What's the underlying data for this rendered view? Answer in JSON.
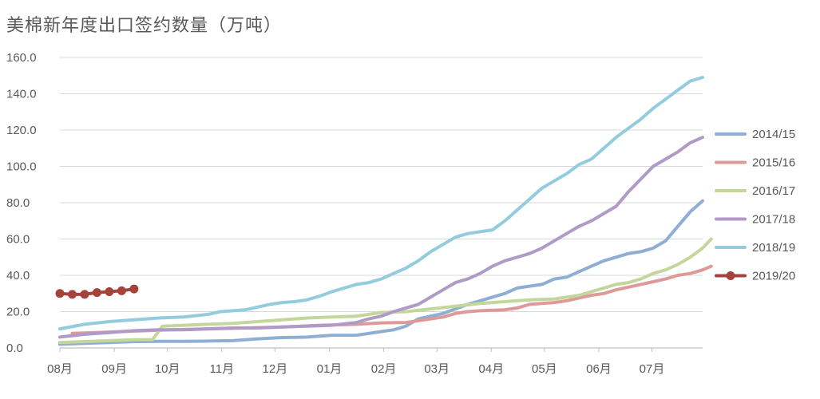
{
  "chart_data": {
    "type": "line",
    "title": "美棉新年度出口签约数量（万吨）",
    "xlabel": "",
    "ylabel": "",
    "ylim": [
      0,
      160
    ],
    "yticks": [
      "0.0",
      "20.0",
      "40.0",
      "60.0",
      "80.0",
      "100.0",
      "120.0",
      "140.0",
      "160.0"
    ],
    "x_range": [
      0,
      52
    ],
    "x_ticks": [
      {
        "label": "08月",
        "x": 0
      },
      {
        "label": "09月",
        "x": 4.4
      },
      {
        "label": "10月",
        "x": 8.7
      },
      {
        "label": "11月",
        "x": 13.1
      },
      {
        "label": "12月",
        "x": 17.4
      },
      {
        "label": "01月",
        "x": 21.8
      },
      {
        "label": "02月",
        "x": 26.2
      },
      {
        "label": "03月",
        "x": 30.5
      },
      {
        "label": "04月",
        "x": 34.9
      },
      {
        "label": "05月",
        "x": 39.2
      },
      {
        "label": "06月",
        "x": 43.6
      },
      {
        "label": "07月",
        "x": 47.9
      }
    ],
    "grid": true,
    "legend_position": "right",
    "series": [
      {
        "name": "2014/15",
        "color": "#8eaed3",
        "marker": false,
        "points": [
          [
            0,
            2
          ],
          [
            2,
            2.5
          ],
          [
            4,
            3
          ],
          [
            6,
            3.5
          ],
          [
            8,
            3.6
          ],
          [
            10,
            3.6
          ],
          [
            12,
            3.8
          ],
          [
            14,
            4
          ],
          [
            16,
            5
          ],
          [
            18,
            5.7
          ],
          [
            20,
            6
          ],
          [
            22,
            7
          ],
          [
            24,
            7
          ],
          [
            26,
            9
          ],
          [
            27,
            10
          ],
          [
            28,
            12
          ],
          [
            29,
            16
          ],
          [
            30,
            17.5
          ],
          [
            31,
            19
          ],
          [
            32,
            21.5
          ],
          [
            33,
            24
          ],
          [
            34,
            26
          ],
          [
            35,
            28
          ],
          [
            36,
            30
          ],
          [
            37,
            33
          ],
          [
            38,
            34
          ],
          [
            39,
            35
          ],
          [
            40,
            38
          ],
          [
            41,
            39
          ],
          [
            42,
            42
          ],
          [
            43,
            45
          ],
          [
            44,
            48
          ],
          [
            45,
            50
          ],
          [
            46,
            52
          ],
          [
            47,
            53
          ],
          [
            48,
            55
          ],
          [
            49,
            59
          ],
          [
            50,
            67
          ],
          [
            51,
            75
          ],
          [
            52,
            81
          ]
        ]
      },
      {
        "name": "2015/16",
        "color": "#dd9a99",
        "marker": false,
        "points": [
          [
            1,
            8
          ],
          [
            3,
            8.5
          ],
          [
            5,
            9
          ],
          [
            7,
            9.5
          ],
          [
            9,
            10
          ],
          [
            12,
            10.5
          ],
          [
            15,
            11
          ],
          [
            18,
            11.5
          ],
          [
            21,
            12.5
          ],
          [
            24,
            13
          ],
          [
            26,
            13.8
          ],
          [
            28,
            14
          ],
          [
            29,
            15
          ],
          [
            30,
            16
          ],
          [
            31,
            17
          ],
          [
            32,
            19
          ],
          [
            33,
            20
          ],
          [
            34,
            20.5
          ],
          [
            36,
            21
          ],
          [
            37,
            22
          ],
          [
            38,
            24
          ],
          [
            39,
            24.5
          ],
          [
            40,
            25
          ],
          [
            41,
            26
          ],
          [
            42,
            27.5
          ],
          [
            43,
            29
          ],
          [
            44,
            30
          ],
          [
            45,
            32
          ],
          [
            46,
            33.5
          ],
          [
            47,
            35
          ],
          [
            48,
            36.5
          ],
          [
            49,
            38
          ],
          [
            50,
            40
          ],
          [
            51,
            41
          ],
          [
            52,
            43
          ],
          [
            52.7,
            45
          ]
        ]
      },
      {
        "name": "2016/17",
        "color": "#c3d69b",
        "marker": false,
        "points": [
          [
            0,
            3
          ],
          [
            2,
            3.5
          ],
          [
            4,
            4
          ],
          [
            6,
            4.5
          ],
          [
            7.5,
            4.6
          ],
          [
            8.3,
            12
          ],
          [
            10,
            12.5
          ],
          [
            12,
            13
          ],
          [
            14,
            13.5
          ],
          [
            16,
            14.5
          ],
          [
            18,
            15.5
          ],
          [
            20,
            16.5
          ],
          [
            22,
            17
          ],
          [
            24,
            17.5
          ],
          [
            25,
            18.5
          ],
          [
            26,
            19.5
          ],
          [
            28,
            20
          ],
          [
            30,
            21.5
          ],
          [
            32,
            23
          ],
          [
            34,
            24.5
          ],
          [
            36,
            25.5
          ],
          [
            38,
            26.5
          ],
          [
            40,
            27
          ],
          [
            41,
            28
          ],
          [
            42,
            29
          ],
          [
            43,
            31
          ],
          [
            44,
            33
          ],
          [
            45,
            35
          ],
          [
            46,
            36
          ],
          [
            47,
            38
          ],
          [
            48,
            41
          ],
          [
            49,
            43
          ],
          [
            50,
            46
          ],
          [
            51,
            50
          ],
          [
            52,
            55
          ],
          [
            52.7,
            60
          ]
        ]
      },
      {
        "name": "2017/18",
        "color": "#b09ac8",
        "marker": false,
        "points": [
          [
            0,
            6
          ],
          [
            2,
            7.5
          ],
          [
            4,
            8.5
          ],
          [
            6,
            9.5
          ],
          [
            8,
            10
          ],
          [
            10,
            10
          ],
          [
            12,
            10.5
          ],
          [
            14,
            11
          ],
          [
            16,
            11
          ],
          [
            18,
            11.5
          ],
          [
            20,
            12
          ],
          [
            22,
            12.5
          ],
          [
            24,
            14
          ],
          [
            25,
            16
          ],
          [
            26,
            17.5
          ],
          [
            27,
            20
          ],
          [
            28,
            22
          ],
          [
            29,
            24
          ],
          [
            30,
            28
          ],
          [
            31,
            32
          ],
          [
            32,
            36
          ],
          [
            33,
            38
          ],
          [
            34,
            41
          ],
          [
            35,
            45
          ],
          [
            36,
            48
          ],
          [
            37,
            50
          ],
          [
            38,
            52
          ],
          [
            39,
            55
          ],
          [
            40,
            59
          ],
          [
            41,
            63
          ],
          [
            42,
            67
          ],
          [
            43,
            70
          ],
          [
            44,
            74
          ],
          [
            45,
            78
          ],
          [
            46,
            86
          ],
          [
            47,
            93
          ],
          [
            48,
            100
          ],
          [
            49,
            104
          ],
          [
            50,
            108
          ],
          [
            51,
            113
          ],
          [
            52,
            116
          ]
        ]
      },
      {
        "name": "2018/19",
        "color": "#93cddd",
        "marker": false,
        "points": [
          [
            0,
            10.5
          ],
          [
            2,
            13
          ],
          [
            4,
            14.5
          ],
          [
            6,
            15.5
          ],
          [
            8,
            16.5
          ],
          [
            10,
            17
          ],
          [
            12,
            18.5
          ],
          [
            13,
            20
          ],
          [
            14,
            20.5
          ],
          [
            15,
            21
          ],
          [
            16,
            22.5
          ],
          [
            17,
            24
          ],
          [
            18,
            25
          ],
          [
            19,
            25.5
          ],
          [
            20,
            26.5
          ],
          [
            21,
            28.5
          ],
          [
            22,
            31
          ],
          [
            23,
            33
          ],
          [
            24,
            35
          ],
          [
            25,
            36
          ],
          [
            26,
            38
          ],
          [
            27,
            41
          ],
          [
            28,
            44
          ],
          [
            29,
            48
          ],
          [
            30,
            53
          ],
          [
            31,
            57
          ],
          [
            32,
            61
          ],
          [
            33,
            63
          ],
          [
            34,
            64
          ],
          [
            35,
            65
          ],
          [
            36,
            70
          ],
          [
            37,
            76
          ],
          [
            38,
            82
          ],
          [
            39,
            88
          ],
          [
            40,
            92
          ],
          [
            41,
            96
          ],
          [
            42,
            101
          ],
          [
            43,
            104
          ],
          [
            44,
            110
          ],
          [
            45,
            116
          ],
          [
            46,
            121
          ],
          [
            47,
            126
          ],
          [
            48,
            132
          ],
          [
            49,
            137
          ],
          [
            50,
            142
          ],
          [
            51,
            147
          ],
          [
            52,
            149
          ]
        ]
      },
      {
        "name": "2019/20",
        "color": "#a5423c",
        "marker": true,
        "points": [
          [
            0,
            30
          ],
          [
            1,
            29.5
          ],
          [
            2,
            29.5
          ],
          [
            3,
            30.5
          ],
          [
            4,
            31
          ],
          [
            5,
            31.5
          ],
          [
            6,
            32.5
          ]
        ]
      }
    ]
  }
}
